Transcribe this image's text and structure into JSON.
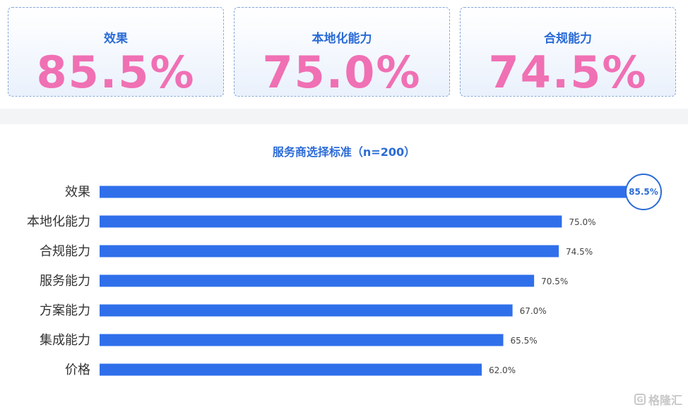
{
  "kpi_cards": [
    {
      "label": "效果",
      "value": "85.5%"
    },
    {
      "label": "本地化能力",
      "value": "75.0%"
    },
    {
      "label": "合规能力",
      "value": "74.5%"
    }
  ],
  "chart_data": {
    "type": "bar",
    "orientation": "horizontal",
    "title": "服务商选择标准（n=200）",
    "categories": [
      "效果",
      "本地化能力",
      "合规能力",
      "服务能力",
      "方案能力",
      "集成能力",
      "价格"
    ],
    "values": [
      85.5,
      75.0,
      74.5,
      70.5,
      67.0,
      65.5,
      62.0
    ],
    "value_labels": [
      "85.5%",
      "75.0%",
      "74.5%",
      "70.5%",
      "67.0%",
      "65.5%",
      "62.0%"
    ],
    "xlim": [
      0,
      85.5
    ],
    "highlighted_category": "效果",
    "bar_color": "#2f6fea",
    "grid": false,
    "legend": "none"
  },
  "watermark": {
    "icon": "G",
    "text": "格隆汇"
  },
  "colors": {
    "accent": "#2b6bd6",
    "kpi_value": "#f070b4",
    "bar": "#2f6fea"
  }
}
